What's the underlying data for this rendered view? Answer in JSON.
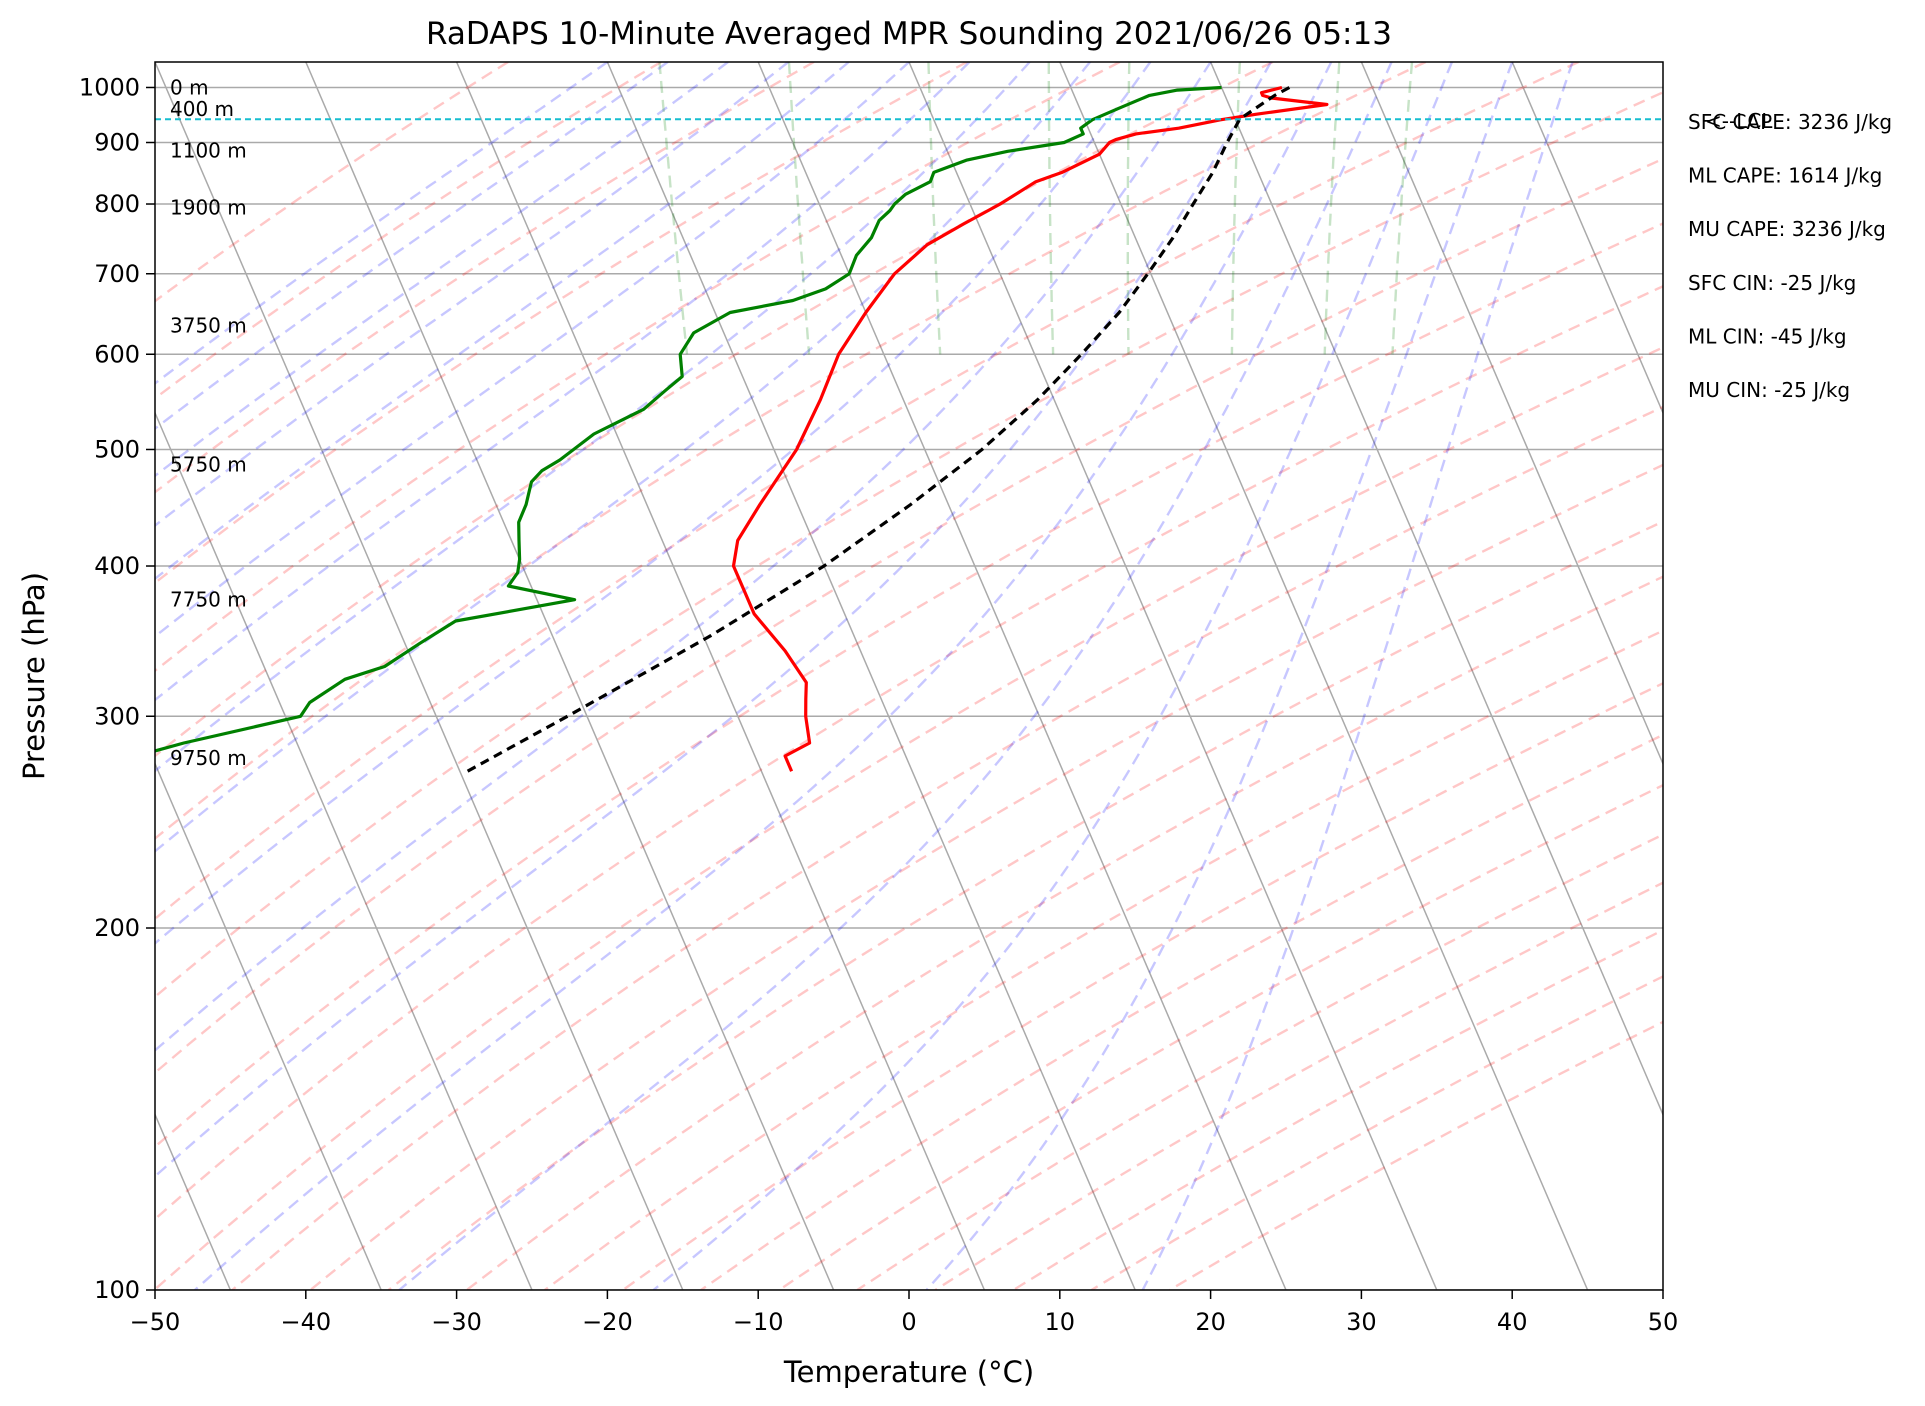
{
  "chart_data": {
    "type": "line",
    "title": "RaDAPS 10-Minute Averaged MPR Sounding 2021/06/26 05:13",
    "xlabel": "Temperature (°C)",
    "ylabel": "Pressure (hPa)",
    "xlim": [
      -50,
      50
    ],
    "ylim": [
      1050,
      100
    ],
    "y_scale": "log",
    "grid": true,
    "x_ticks": [
      -50,
      -40,
      -30,
      -20,
      -10,
      0,
      10,
      20,
      30,
      40,
      50
    ],
    "x_tick_labels": [
      "−50",
      "−40",
      "−30",
      "−20",
      "−10",
      "0",
      "10",
      "20",
      "30",
      "40",
      "50"
    ],
    "y_ticks": [
      1000,
      900,
      800,
      700,
      600,
      500,
      400,
      300,
      200,
      100
    ],
    "y_tick_labels": [
      "1000",
      "900",
      "800",
      "700",
      "600",
      "500",
      "400",
      "300",
      "200",
      "100"
    ],
    "height_labels": [
      {
        "pressure": 1000,
        "text": "0 m"
      },
      {
        "pressure": 960,
        "text": "400 m"
      },
      {
        "pressure": 886,
        "text": "1100 m"
      },
      {
        "pressure": 795,
        "text": "1900 m"
      },
      {
        "pressure": 634,
        "text": "3750 m"
      },
      {
        "pressure": 486,
        "text": "5750 m"
      },
      {
        "pressure": 375,
        "text": "7750 m"
      },
      {
        "pressure": 277,
        "text": "9750 m"
      }
    ],
    "indices": [
      "SFC CAPE: 3236 J/kg",
      "ML CAPE: 1614 J/kg",
      "MU CAPE: 3236 J/kg",
      "SFC CIN: -25 J/kg",
      "ML CIN: -45 J/kg",
      "MU CIN: -25 J/kg"
    ],
    "lcl": {
      "pressure": 941,
      "label": "<--LCL"
    },
    "series": [
      {
        "style": "temperature",
        "color": "#ff0000",
        "pressure": [
          1000,
          990,
          985,
          980,
          968,
          950,
          940,
          925,
          915,
          905,
          900,
          880,
          850,
          835,
          800,
          770,
          740,
          700,
          650,
          600,
          550,
          500,
          450,
          420,
          400,
          380,
          365,
          340,
          320,
          310,
          300,
          285,
          278,
          270
        ],
        "temp": [
          24,
          22.5,
          22.5,
          23,
          26.5,
          21.5,
          19,
          16,
          13,
          11.5,
          11,
          10,
          7,
          5,
          2,
          -1,
          -4,
          -7,
          -10,
          -13,
          -15.5,
          -18.5,
          -22.5,
          -25,
          -26,
          -26,
          -26,
          -25,
          -24.5,
          -25,
          -25.5,
          -26,
          -28,
          -28
        ]
      },
      {
        "style": "dewpoint",
        "color": "#008000",
        "pressure": [
          1000,
          995,
          985,
          975,
          960,
          940,
          925,
          915,
          900,
          885,
          870,
          850,
          835,
          815,
          800,
          790,
          775,
          750,
          725,
          700,
          680,
          665,
          650,
          625,
          600,
          575,
          560,
          540,
          515,
          490,
          480,
          470,
          460,
          450,
          435,
          420,
          405,
          395,
          385,
          375,
          360,
          345,
          330,
          322,
          308,
          300,
          285,
          278,
          270
        ],
        "temp": [
          20,
          17,
          15,
          14,
          12.5,
          10.5,
          9.5,
          9.5,
          8,
          4,
          1,
          -1.5,
          -2,
          -4,
          -5,
          -5.5,
          -6.5,
          -7.5,
          -9,
          -10,
          -12,
          -14.5,
          -19,
          -22,
          -23.5,
          -24,
          -25.5,
          -27.5,
          -31.5,
          -34.5,
          -36,
          -37,
          -37.5,
          -38,
          -39,
          -39.5,
          -40,
          -40.5,
          -41.5,
          -37.5,
          -46,
          -49,
          -52,
          -55,
          -58,
          -59,
          -67.5,
          -71,
          -72
        ]
      },
      {
        "style": "parcel",
        "color": "#000000",
        "pressure": [
          1000,
          985,
          960,
          941,
          900,
          850,
          800,
          750,
          700,
          650,
          600,
          550,
          500,
          450,
          400,
          350,
          300,
          270
        ],
        "temp": [
          24.5,
          23.3,
          21.6,
          20.3,
          18.8,
          17.0,
          14.8,
          12.5,
          9.8,
          6.8,
          3.1,
          -1.1,
          -6.2,
          -12.5,
          -20.0,
          -29.5,
          -41.3,
          -49.5
        ]
      }
    ]
  }
}
